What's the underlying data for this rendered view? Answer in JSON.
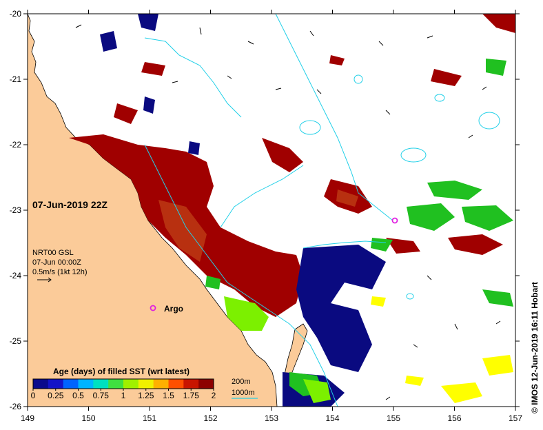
{
  "map": {
    "date_title": "07-Jun-2019 22Z",
    "current_info": {
      "line1": "NRT00 GSL",
      "line2": "07-Jun 00:00Z",
      "line3": "0.5m/s (1kt 12h)"
    },
    "argo_label": "Argo",
    "credit": "© IMOS 12-Jun-2019 16:11 Hobart",
    "lat_ticks": [
      "-20",
      "-21",
      "-22",
      "-23",
      "-24",
      "-25",
      "-26"
    ],
    "lon_ticks": [
      "149",
      "150",
      "151",
      "152",
      "153",
      "154",
      "155",
      "156",
      "157"
    ],
    "colorbar": {
      "title": "Age (days) of filled SST (wrt latest)",
      "ticks": [
        "0",
        "0.25",
        "0.5",
        "0.75",
        "1",
        "1.25",
        "1.5",
        "1.75",
        "2"
      ],
      "colors": [
        "#0a0a8c",
        "#1414c8",
        "#0064ff",
        "#00b4ff",
        "#00e0c0",
        "#40e040",
        "#a0f000",
        "#f0f000",
        "#ffb000",
        "#ff5000",
        "#c81400",
        "#8c0000"
      ]
    },
    "isobath_legend": {
      "label_200": "200m",
      "label_1000": "1000m"
    },
    "colors": {
      "land": "#fbcb99",
      "isobath": "#22d0e8",
      "age_old": "#a00000",
      "age_old_alt": "#b83010",
      "age_new": "#0a0a80",
      "age_green": "#20c020",
      "age_lime": "#7cf000",
      "age_yellow": "#ffff00",
      "argo": "#e020e0"
    }
  }
}
